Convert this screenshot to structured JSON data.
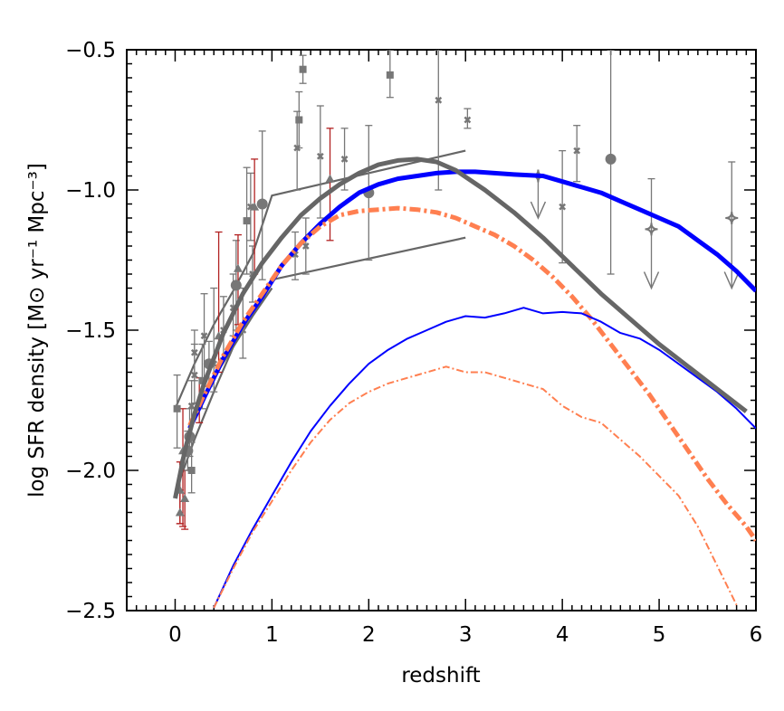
{
  "chart_data": {
    "type": "line",
    "xlabel": "redshift",
    "ylabel": "log SFR density [M⊙ yr⁻¹ Mpc⁻³]",
    "xlim": [
      -0.5,
      6
    ],
    "ylim": [
      -2.5,
      -0.5
    ],
    "xticks": [
      0,
      1,
      2,
      3,
      4,
      5,
      6
    ],
    "xtick_labels": [
      "0",
      "1",
      "2",
      "3",
      "4",
      "5",
      "6"
    ],
    "yticks": [
      -2.5,
      -2.0,
      -1.5,
      -1.0,
      -0.5
    ],
    "ytick_labels": [
      "−2.5",
      "−2.0",
      "−1.5",
      "−1.0",
      "−0.5"
    ],
    "grid": false,
    "lines": [
      {
        "color": "#0000ff",
        "style": "solid",
        "weight": "thick",
        "x": [
          0.15,
          0.3,
          0.5,
          0.7,
          0.9,
          1.1,
          1.3,
          1.5,
          1.7,
          1.9,
          2.1,
          2.3,
          2.5,
          2.7,
          2.9,
          3.1,
          3.3,
          3.5,
          3.8,
          4.0,
          4.2,
          4.4,
          4.6,
          4.8,
          5.0,
          5.2,
          5.4,
          5.6,
          5.8,
          6.0
        ],
        "y": [
          -1.85,
          -1.74,
          -1.6,
          -1.48,
          -1.38,
          -1.27,
          -1.19,
          -1.12,
          -1.06,
          -1.01,
          -0.98,
          -0.96,
          -0.95,
          -0.94,
          -0.935,
          -0.935,
          -0.94,
          -0.945,
          -0.95,
          -0.97,
          -0.99,
          -1.01,
          -1.04,
          -1.07,
          -1.1,
          -1.13,
          -1.18,
          -1.23,
          -1.29,
          -1.36
        ]
      },
      {
        "color": "#ff7f50",
        "style": "dashdot",
        "weight": "thick",
        "x": [
          0.15,
          0.3,
          0.5,
          0.7,
          0.9,
          1.1,
          1.3,
          1.5,
          1.7,
          1.9,
          2.1,
          2.3,
          2.5,
          2.7,
          2.9,
          3.1,
          3.3,
          3.5,
          3.7,
          3.9,
          4.1,
          4.3,
          4.5,
          4.7,
          4.9,
          5.1,
          5.3,
          5.5,
          5.7,
          5.9,
          6.0
        ],
        "y": [
          -1.84,
          -1.73,
          -1.59,
          -1.47,
          -1.37,
          -1.27,
          -1.19,
          -1.13,
          -1.09,
          -1.075,
          -1.07,
          -1.065,
          -1.07,
          -1.08,
          -1.1,
          -1.13,
          -1.16,
          -1.2,
          -1.25,
          -1.31,
          -1.38,
          -1.46,
          -1.55,
          -1.64,
          -1.73,
          -1.83,
          -1.93,
          -2.03,
          -2.12,
          -2.2,
          -2.25
        ]
      },
      {
        "color": "#0000ff",
        "style": "solid",
        "weight": "thin",
        "x": [
          0.4,
          0.6,
          0.8,
          1.0,
          1.2,
          1.4,
          1.6,
          1.8,
          2.0,
          2.2,
          2.4,
          2.6,
          2.8,
          3.0,
          3.2,
          3.4,
          3.6,
          3.8,
          4.0,
          4.2,
          4.4,
          4.6,
          4.8,
          5.0,
          5.2,
          5.4,
          5.6,
          5.8,
          6.0
        ],
        "y": [
          -2.49,
          -2.34,
          -2.21,
          -2.09,
          -1.97,
          -1.86,
          -1.77,
          -1.69,
          -1.62,
          -1.57,
          -1.53,
          -1.5,
          -1.47,
          -1.45,
          -1.455,
          -1.44,
          -1.42,
          -1.44,
          -1.435,
          -1.44,
          -1.47,
          -1.51,
          -1.53,
          -1.57,
          -1.62,
          -1.67,
          -1.72,
          -1.78,
          -1.85
        ]
      },
      {
        "color": "#ff7f50",
        "style": "dashdot",
        "weight": "thin",
        "x": [
          0.4,
          0.6,
          0.8,
          1.0,
          1.2,
          1.4,
          1.6,
          1.8,
          2.0,
          2.2,
          2.4,
          2.6,
          2.8,
          3.0,
          3.2,
          3.4,
          3.6,
          3.8,
          4.0,
          4.2,
          4.4,
          4.6,
          4.8,
          5.0,
          5.2,
          5.4,
          5.6,
          5.8
        ],
        "y": [
          -2.49,
          -2.35,
          -2.22,
          -2.11,
          -2.0,
          -1.9,
          -1.82,
          -1.76,
          -1.72,
          -1.69,
          -1.67,
          -1.65,
          -1.63,
          -1.65,
          -1.65,
          -1.67,
          -1.69,
          -1.71,
          -1.77,
          -1.81,
          -1.83,
          -1.89,
          -1.95,
          -2.02,
          -2.09,
          -2.2,
          -2.34,
          -2.48
        ]
      },
      {
        "color": "#666666",
        "style": "solid",
        "weight": "thick",
        "x": [
          0.0,
          0.1,
          0.2,
          0.3,
          0.5,
          0.7,
          0.9,
          1.1,
          1.3,
          1.5,
          1.7,
          1.9,
          2.1,
          2.3,
          2.5,
          2.7,
          2.9,
          3.2,
          3.5,
          3.8,
          4.1,
          4.4,
          4.7,
          5.0,
          5.3,
          5.6,
          5.9
        ],
        "y": [
          -2.1,
          -1.93,
          -1.8,
          -1.69,
          -1.51,
          -1.37,
          -1.26,
          -1.17,
          -1.09,
          -1.03,
          -0.98,
          -0.94,
          -0.91,
          -0.895,
          -0.89,
          -0.9,
          -0.93,
          -1.0,
          -1.08,
          -1.17,
          -1.27,
          -1.37,
          -1.46,
          -1.55,
          -1.63,
          -1.71,
          -1.79
        ]
      }
    ],
    "envelope_lines": [
      {
        "color": "#666666",
        "x": [
          0.0,
          0.2,
          0.4,
          0.6,
          0.8,
          1.0,
          3.0
        ],
        "y": [
          -1.78,
          -1.62,
          -1.48,
          -1.36,
          -1.23,
          -1.02,
          -0.86
        ]
      },
      {
        "color": "#666666",
        "x": [
          0.0,
          0.2,
          0.4,
          0.6,
          0.8,
          1.0,
          3.0
        ],
        "y": [
          -2.08,
          -1.89,
          -1.72,
          -1.56,
          -1.43,
          -1.32,
          -1.17
        ]
      },
      {
        "color": "#666666",
        "x": [
          0.05,
          0.2,
          0.4,
          0.6,
          0.8,
          1.0
        ],
        "y": [
          -1.98,
          -1.82,
          -1.67,
          -1.56,
          -1.45,
          -1.35
        ]
      }
    ],
    "points": [
      {
        "x": 0.02,
        "y": -1.78,
        "ylo": -1.92,
        "yhi": -1.66,
        "marker": "square",
        "color": "#777777"
      },
      {
        "x": 0.05,
        "y": -2.15,
        "ylo": -2.19,
        "yhi": -2.07,
        "marker": "triangle",
        "color": "#777777",
        "ecolor": "#b22222"
      },
      {
        "x": 0.05,
        "y": -2.07,
        "ylo": -2.19,
        "yhi": -1.97,
        "marker": "triangle",
        "color": "#777777",
        "ecolor": "#b22222"
      },
      {
        "x": 0.08,
        "y": -1.93,
        "ylo": -2.2,
        "yhi": -1.78,
        "marker": "triangle",
        "color": "#777777",
        "ecolor": "#b22222"
      },
      {
        "x": 0.1,
        "y": -2.1,
        "ylo": -2.21,
        "yhi": -2.0,
        "marker": "triangle",
        "color": "#777777",
        "ecolor": "#b22222"
      },
      {
        "x": 0.13,
        "y": -1.93,
        "ylo": -2.0,
        "yhi": -1.86,
        "marker": "circle",
        "color": "#777777"
      },
      {
        "x": 0.15,
        "y": -1.88,
        "ylo": -1.95,
        "yhi": -1.78,
        "marker": "circle",
        "color": "#777777"
      },
      {
        "x": 0.17,
        "y": -2.0,
        "ylo": -2.08,
        "yhi": -1.9,
        "marker": "square",
        "color": "#777777"
      },
      {
        "x": 0.17,
        "y": -1.77,
        "ylo": -1.88,
        "yhi": -1.68,
        "marker": "cross",
        "color": "#777777"
      },
      {
        "x": 0.2,
        "y": -1.66,
        "ylo": -1.76,
        "yhi": -1.55,
        "marker": "cross",
        "color": "#777777"
      },
      {
        "x": 0.2,
        "y": -1.58,
        "ylo": -1.68,
        "yhi": -1.5,
        "marker": "cross",
        "color": "#777777"
      },
      {
        "x": 0.25,
        "y": -1.75,
        "ylo": -1.83,
        "yhi": -1.67,
        "marker": "triangle",
        "color": "#777777",
        "ecolor": "#b22222"
      },
      {
        "x": 0.28,
        "y": -1.68,
        "ylo": -1.78,
        "yhi": -1.55,
        "marker": "square",
        "color": "#777777"
      },
      {
        "x": 0.3,
        "y": -1.52,
        "ylo": -1.68,
        "yhi": -1.37,
        "marker": "cross",
        "color": "#777777"
      },
      {
        "x": 0.35,
        "y": -1.62,
        "ylo": -1.7,
        "yhi": -1.54,
        "marker": "circle",
        "color": "#777777"
      },
      {
        "x": 0.4,
        "y": -1.62,
        "ylo": -1.72,
        "yhi": -1.35,
        "marker": "cross",
        "color": "#777777"
      },
      {
        "x": 0.45,
        "y": -1.52,
        "ylo": -1.65,
        "yhi": -1.15,
        "marker": "triangle",
        "color": "#777777",
        "ecolor": "#b22222"
      },
      {
        "x": 0.5,
        "y": -1.5,
        "ylo": -1.6,
        "yhi": -1.38,
        "marker": "cross",
        "color": "#777777"
      },
      {
        "x": 0.6,
        "y": -1.42,
        "ylo": -1.52,
        "yhi": -1.3,
        "marker": "cross",
        "color": "#777777"
      },
      {
        "x": 0.63,
        "y": -1.34,
        "ylo": -1.5,
        "yhi": -1.18,
        "marker": "circle",
        "color": "#777777"
      },
      {
        "x": 0.65,
        "y": -1.28,
        "ylo": -1.48,
        "yhi": -1.16,
        "marker": "triangle",
        "color": "#777777",
        "ecolor": "#b22222"
      },
      {
        "x": 0.7,
        "y": -1.5,
        "ylo": -1.6,
        "yhi": -1.35,
        "marker": "cross",
        "color": "#777777"
      },
      {
        "x": 0.74,
        "y": -1.11,
        "ylo": -1.3,
        "yhi": -0.92,
        "marker": "square",
        "color": "#777777"
      },
      {
        "x": 0.78,
        "y": -1.06,
        "ylo": -1.18,
        "yhi": -0.94,
        "marker": "cross",
        "color": "#777777"
      },
      {
        "x": 0.8,
        "y": -1.3,
        "ylo": -1.4,
        "yhi": -1.2,
        "marker": "cross",
        "color": "#777777"
      },
      {
        "x": 0.82,
        "y": -1.06,
        "ylo": -1.3,
        "yhi": -0.89,
        "marker": "triangle",
        "color": "#777777",
        "ecolor": "#b22222"
      },
      {
        "x": 0.9,
        "y": -1.05,
        "ylo": -1.32,
        "yhi": -0.79,
        "marker": "circle",
        "color": "#777777"
      },
      {
        "x": 1.24,
        "y": -1.23,
        "ylo": -1.32,
        "yhi": -1.15,
        "marker": "cross",
        "color": "#777777"
      },
      {
        "x": 1.26,
        "y": -0.85,
        "ylo": -1.0,
        "yhi": -0.72,
        "marker": "cross",
        "color": "#777777"
      },
      {
        "x": 1.28,
        "y": -0.75,
        "ylo": -0.85,
        "yhi": -0.65,
        "marker": "square",
        "color": "#777777"
      },
      {
        "x": 1.32,
        "y": -0.57,
        "ylo": -0.62,
        "yhi": -0.52,
        "marker": "square",
        "color": "#777777"
      },
      {
        "x": 1.35,
        "y": -1.2,
        "ylo": -1.3,
        "yhi": -1.1,
        "marker": "cross",
        "color": "#777777"
      },
      {
        "x": 1.5,
        "y": -0.88,
        "ylo": -1.1,
        "yhi": -0.7,
        "marker": "cross",
        "color": "#777777"
      },
      {
        "x": 1.6,
        "y": -0.96,
        "ylo": -1.18,
        "yhi": -0.78,
        "marker": "triangle",
        "color": "#777777",
        "ecolor": "#b22222"
      },
      {
        "x": 1.75,
        "y": -0.89,
        "ylo": -1.0,
        "yhi": -0.78,
        "marker": "cross",
        "color": "#777777"
      },
      {
        "x": 2.0,
        "y": -1.01,
        "ylo": -1.25,
        "yhi": -0.77,
        "marker": "circle",
        "color": "#777777"
      },
      {
        "x": 2.22,
        "y": -0.59,
        "ylo": -0.67,
        "yhi": -0.5,
        "marker": "square",
        "color": "#777777"
      },
      {
        "x": 2.72,
        "y": -0.68,
        "ylo": -1.0,
        "yhi": -0.5,
        "marker": "cross",
        "color": "#777777"
      },
      {
        "x": 3.02,
        "y": -0.75,
        "ylo": -0.78,
        "yhi": -0.71,
        "marker": "cross",
        "color": "#777777"
      },
      {
        "x": 4.0,
        "y": -1.06,
        "ylo": -1.26,
        "yhi": -0.86,
        "marker": "cross",
        "color": "#777777"
      },
      {
        "x": 4.15,
        "y": -0.86,
        "ylo": -0.97,
        "yhi": -0.77,
        "marker": "cross",
        "color": "#777777"
      },
      {
        "x": 4.5,
        "y": -0.89,
        "ylo": -1.3,
        "yhi": -0.5,
        "marker": "circle",
        "color": "#777777"
      }
    ],
    "upper_limits": [
      {
        "x": 3.75,
        "y": -0.95,
        "ylo": -1.1,
        "marker": "star",
        "color": "#777777"
      },
      {
        "x": 4.92,
        "y": -1.14,
        "ylo": -1.35,
        "yhi": -0.96,
        "marker": "star",
        "color": "#777777"
      },
      {
        "x": 5.75,
        "y": -1.1,
        "ylo": -1.35,
        "yhi": -0.9,
        "marker": "star",
        "color": "#777777"
      }
    ]
  }
}
